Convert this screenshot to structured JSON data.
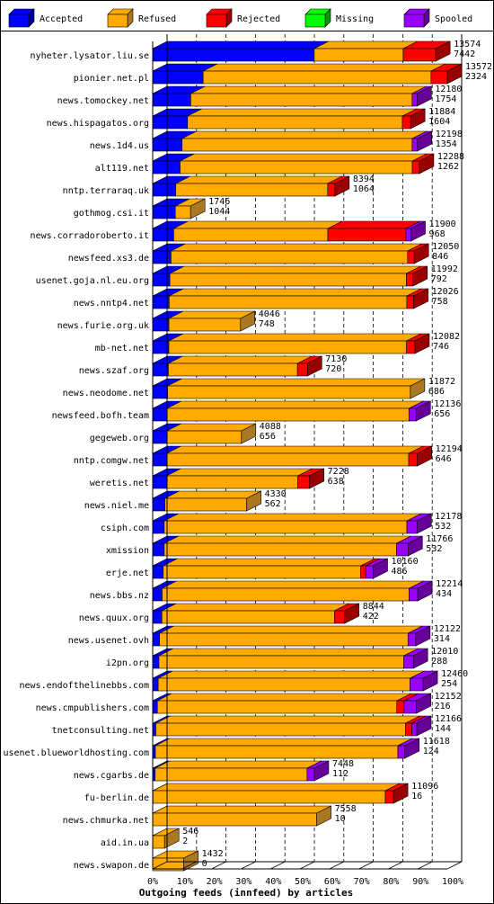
{
  "chart_data": {
    "type": "bar",
    "orientation": "horizontal",
    "stacked": true,
    "style": "3d",
    "title": "Outgoing feeds (innfeed) by articles",
    "legend": {
      "placement": "top",
      "entries": [
        {
          "name": "Accepted",
          "color": "#0000ff",
          "side_color": "#000099"
        },
        {
          "name": "Refused",
          "color": "#ffaa00",
          "side_color": "#aa7722"
        },
        {
          "name": "Rejected",
          "color": "#ff0000",
          "side_color": "#990000"
        },
        {
          "name": "Missing",
          "color": "#00ff00",
          "side_color": "#009900"
        },
        {
          "name": "Spooled",
          "color": "#9900ff",
          "side_color": "#660099"
        }
      ]
    },
    "x_ticks": [
      "0%",
      "10%",
      "20%",
      "30%",
      "40%",
      "50%",
      "60%",
      "70%",
      "80%",
      "90%",
      "100%"
    ],
    "xlim": [
      0,
      100
    ],
    "grid": true,
    "max_total": 13574,
    "rows": [
      {
        "host": "nyheter.lysator.liu.se",
        "total": "13574",
        "accepted": "7442",
        "refused": 4100,
        "rejected": 1500,
        "spooled": 0
      },
      {
        "host": "pionier.net.pl",
        "total": "13572",
        "accepted": "2324",
        "refused": 10500,
        "rejected": 748,
        "spooled": 0
      },
      {
        "host": "news.tomockey.net",
        "total": "12180",
        "accepted": "1754",
        "refused": 10200,
        "rejected": 0,
        "spooled": 226
      },
      {
        "host": "news.hispagatos.org",
        "total": "11884",
        "accepted": "1604",
        "refused": 9900,
        "rejected": 380,
        "spooled": 0
      },
      {
        "host": "news.1d4.us",
        "total": "12198",
        "accepted": "1354",
        "refused": 10600,
        "rejected": 0,
        "spooled": 244
      },
      {
        "host": "alt119.net",
        "total": "12288",
        "accepted": "1262",
        "refused": 10700,
        "rejected": 326,
        "spooled": 0
      },
      {
        "host": "nntp.terraraq.uk",
        "total": "8394",
        "accepted": "1064",
        "refused": 7000,
        "rejected": 330,
        "spooled": 0
      },
      {
        "host": "gothmog.csi.it",
        "total": "1746",
        "accepted": "1044",
        "refused": 702,
        "rejected": 0,
        "spooled": 0
      },
      {
        "host": "news.corradoroberto.it",
        "total": "11900",
        "accepted": "968",
        "refused": 7100,
        "rejected": 3600,
        "spooled": 232
      },
      {
        "host": "newsfeed.xs3.de",
        "total": "12050",
        "accepted": "846",
        "refused": 10900,
        "rejected": 304,
        "spooled": 0
      },
      {
        "host": "usenet.goja.nl.eu.org",
        "total": "11992",
        "accepted": "792",
        "refused": 10900,
        "rejected": 300,
        "spooled": 0
      },
      {
        "host": "news.nntp4.net",
        "total": "12026",
        "accepted": "758",
        "refused": 10950,
        "rejected": 318,
        "spooled": 0
      },
      {
        "host": "news.furie.org.uk",
        "total": "4046",
        "accepted": "748",
        "refused": 3298,
        "rejected": 0,
        "spooled": 0
      },
      {
        "host": "mb-net.net",
        "total": "12082",
        "accepted": "746",
        "refused": 10950,
        "rejected": 386,
        "spooled": 0
      },
      {
        "host": "news.szaf.org",
        "total": "7130",
        "accepted": "720",
        "refused": 5950,
        "rejected": 460,
        "spooled": 0
      },
      {
        "host": "news.neodome.net",
        "total": "11872",
        "accepted": "686",
        "refused": 11186,
        "rejected": 0,
        "spooled": 0
      },
      {
        "host": "newsfeed.bofh.team",
        "total": "12136",
        "accepted": "656",
        "refused": 11150,
        "rejected": 0,
        "spooled": 330
      },
      {
        "host": "gegeweb.org",
        "total": "4088",
        "accepted": "656",
        "refused": 3432,
        "rejected": 0,
        "spooled": 0
      },
      {
        "host": "nntp.comgw.net",
        "total": "12194",
        "accepted": "646",
        "refused": 11150,
        "rejected": 398,
        "spooled": 0
      },
      {
        "host": "weretis.net",
        "total": "7228",
        "accepted": "638",
        "refused": 6050,
        "rejected": 540,
        "spooled": 0
      },
      {
        "host": "news.niel.me",
        "total": "4330",
        "accepted": "562",
        "refused": 3768,
        "rejected": 0,
        "spooled": 0
      },
      {
        "host": "csiph.com",
        "total": "12178",
        "accepted": "532",
        "refused": 11180,
        "rejected": 0,
        "spooled": 466
      },
      {
        "host": "xmission",
        "total": "11766",
        "accepted": "532",
        "refused": 10700,
        "rejected": 0,
        "spooled": 534
      },
      {
        "host": "erje.net",
        "total": "10160",
        "accepted": "486",
        "refused": 9100,
        "rejected": 230,
        "spooled": 344
      },
      {
        "host": "news.bbs.nz",
        "total": "12214",
        "accepted": "434",
        "refused": 11380,
        "rejected": 0,
        "spooled": 400
      },
      {
        "host": "news.quux.org",
        "total": "8844",
        "accepted": "422",
        "refused": 7950,
        "rejected": 472,
        "spooled": 0
      },
      {
        "host": "news.usenet.ovh",
        "total": "12122",
        "accepted": "314",
        "refused": 11450,
        "rejected": 0,
        "spooled": 358
      },
      {
        "host": "i2pn.org",
        "total": "12010",
        "accepted": "288",
        "refused": 11280,
        "rejected": 0,
        "spooled": 442
      },
      {
        "host": "news.endofthelinebbs.com",
        "total": "12460",
        "accepted": "254",
        "refused": 11600,
        "rejected": 0,
        "spooled": 606
      },
      {
        "host": "news.cmpublishers.com",
        "total": "12152",
        "accepted": "216",
        "refused": 11030,
        "rejected": 340,
        "spooled": 566
      },
      {
        "host": "tnetconsulting.net",
        "total": "12166",
        "accepted": "144",
        "refused": 11500,
        "rejected": 300,
        "spooled": 222
      },
      {
        "host": "usenet.blueworldhosting.com",
        "total": "11618",
        "accepted": "124",
        "refused": 11170,
        "rejected": 0,
        "spooled": 324
      },
      {
        "host": "news.cgarbs.de",
        "total": "7448",
        "accepted": "112",
        "refused": 7000,
        "rejected": 0,
        "spooled": 336
      },
      {
        "host": "fu-berlin.de",
        "total": "11096",
        "accepted": "16",
        "refused": 10700,
        "rejected": 380,
        "spooled": 0
      },
      {
        "host": "news.chmurka.net",
        "total": "7558",
        "accepted": "10",
        "refused": 7548,
        "rejected": 0,
        "spooled": 0
      },
      {
        "host": "aid.in.ua",
        "total": "546",
        "accepted": "2",
        "refused": 544,
        "rejected": 0,
        "spooled": 0
      },
      {
        "host": "news.swapon.de",
        "total": "1432",
        "accepted": "0",
        "refused": 1432,
        "rejected": 0,
        "spooled": 0
      }
    ]
  }
}
